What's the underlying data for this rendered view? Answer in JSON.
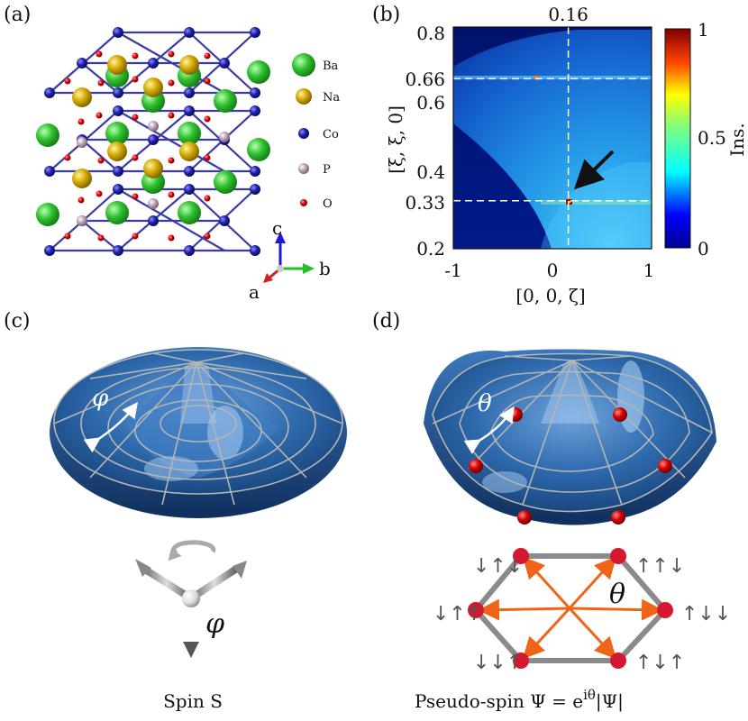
{
  "panels": {
    "a": {
      "label": "(a)"
    },
    "b": {
      "label": "(b)"
    },
    "c": {
      "label": "(c)"
    },
    "d": {
      "label": "(d)"
    }
  },
  "crystal": {
    "legend": [
      {
        "name": "Ba",
        "color": "#35c235"
      },
      {
        "name": "Na",
        "color": "#c9a400"
      },
      {
        "name": "Co",
        "color": "#1c1c9c"
      },
      {
        "name": "P",
        "color": "#b89bb0"
      },
      {
        "name": "O",
        "color": "#d40000"
      }
    ],
    "axes": {
      "c": "c",
      "b": "b",
      "a": "a"
    }
  },
  "chart_data": {
    "type": "heatmap",
    "xlabel": "[0, 0, ζ]",
    "ylabel": "[ξ, ξ, 0]",
    "xlim": [
      -1,
      1
    ],
    "ylim": [
      0.2,
      0.8
    ],
    "x_ticks": [
      "-1",
      "0",
      "1"
    ],
    "y_ticks": [
      "0.2",
      "0.33",
      "0.4",
      "0.6",
      "0.66",
      "0.8"
    ],
    "top_marker": "0.16",
    "guide_lines": {
      "x": 0.16,
      "y": [
        0.33,
        0.66
      ]
    },
    "arrow_target": {
      "x": 0.16,
      "y": 0.33
    },
    "colorbar": {
      "label": "Ins.",
      "ticks": [
        "0",
        "0.5",
        "1"
      ],
      "range": [
        0,
        1
      ]
    }
  },
  "panel_c": {
    "angle_symbol": "φ",
    "caption": "Spin S"
  },
  "panel_d": {
    "angle_symbol": "θ",
    "caption": "Pseudo-spin Ψ = e^{iθ}|Ψ|",
    "caption_main": "Pseudo-spin Ψ = e",
    "caption_sup": "iθ",
    "caption_tail": "|Ψ|",
    "spin_labels": [
      "↓↑↓",
      "↑↑↓",
      "↓↑↑",
      "↑↓↓",
      "↓↓↑",
      "↑↓↑"
    ]
  }
}
